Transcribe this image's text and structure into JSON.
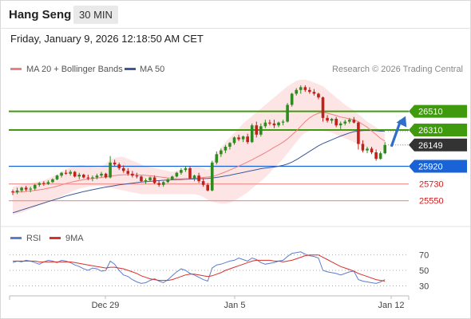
{
  "header": {
    "instrument": "Hang Seng",
    "timeframe": "30 MIN"
  },
  "datetime": "Friday, January 9, 2026 12:18:50 AM CET",
  "legend": {
    "bollinger_label": "MA 20 + Bollinger Bands",
    "ma50_label": "MA 50",
    "copyright": "Research © 2026 Trading Central",
    "rsi_label": "RSI",
    "rsi_ma_label": "9MA"
  },
  "colors": {
    "bullish": "#2e8b1f",
    "bearish": "#c0211b",
    "band_fill": "#fde0e0",
    "ma20": "#f08080",
    "ma50": "#3a5a98",
    "resistance": "#3f9a0e",
    "pivot": "#1a63d6",
    "support": "#f08a8a",
    "current": "#333333",
    "rsi": "#5a7ecf",
    "rsi_ma": "#d8302a"
  },
  "chart_data": [
    {
      "type": "candlestick",
      "title": "",
      "x_ticks": [
        "Dec 29",
        "Jan 5",
        "Jan 12"
      ],
      "ylim": [
        25350,
        26850
      ],
      "levels": {
        "resistance": [
          26510,
          26310
        ],
        "current": 26149,
        "pivot": 25920,
        "support": [
          25730,
          25550
        ]
      },
      "candles": [
        [
          25650,
          25670,
          25610,
          25640
        ],
        [
          25640,
          25690,
          25620,
          25660
        ],
        [
          25660,
          25700,
          25640,
          25690
        ],
        [
          25690,
          25710,
          25650,
          25670
        ],
        [
          25670,
          25700,
          25640,
          25680
        ],
        [
          25680,
          25730,
          25660,
          25720
        ],
        [
          25720,
          25750,
          25700,
          25740
        ],
        [
          25740,
          25760,
          25710,
          25730
        ],
        [
          25730,
          25770,
          25720,
          25750
        ],
        [
          25750,
          25790,
          25740,
          25780
        ],
        [
          25780,
          25830,
          25770,
          25820
        ],
        [
          25820,
          25860,
          25800,
          25850
        ],
        [
          25850,
          25880,
          25830,
          25840
        ],
        [
          25840,
          25880,
          25820,
          25860
        ],
        [
          25860,
          25870,
          25800,
          25810
        ],
        [
          25810,
          25850,
          25780,
          25830
        ],
        [
          25830,
          25840,
          25790,
          25800
        ],
        [
          25800,
          25830,
          25770,
          25790
        ],
        [
          25790,
          25820,
          25760,
          25800
        ],
        [
          25800,
          25840,
          25780,
          25820
        ],
        [
          25820,
          25860,
          25800,
          25840
        ],
        [
          25840,
          25850,
          25790,
          25800
        ],
        [
          25800,
          26030,
          25790,
          25960
        ],
        [
          25960,
          25990,
          25920,
          25940
        ],
        [
          25940,
          25960,
          25880,
          25900
        ],
        [
          25900,
          25930,
          25850,
          25870
        ],
        [
          25870,
          25900,
          25820,
          25840
        ],
        [
          25840,
          25870,
          25800,
          25820
        ],
        [
          25820,
          25850,
          25790,
          25810
        ],
        [
          25810,
          25820,
          25750,
          25760
        ],
        [
          25760,
          25790,
          25730,
          25770
        ],
        [
          25770,
          25810,
          25760,
          25800
        ],
        [
          25800,
          25820,
          25730,
          25740
        ],
        [
          25740,
          25770,
          25700,
          25720
        ],
        [
          25720,
          25760,
          25700,
          25750
        ],
        [
          25750,
          25790,
          25740,
          25780
        ],
        [
          25780,
          25820,
          25770,
          25810
        ],
        [
          25810,
          25860,
          25800,
          25850
        ],
        [
          25850,
          25900,
          25830,
          25880
        ],
        [
          25880,
          25920,
          25860,
          25900
        ],
        [
          25900,
          25920,
          25780,
          25790
        ],
        [
          25790,
          25830,
          25760,
          25820
        ],
        [
          25820,
          25850,
          25740,
          25760
        ],
        [
          25760,
          25790,
          25700,
          25720
        ],
        [
          25720,
          25740,
          25650,
          25660
        ],
        [
          25660,
          25980,
          25650,
          25960
        ],
        [
          25960,
          26080,
          25940,
          26050
        ],
        [
          26050,
          26110,
          26020,
          26090
        ],
        [
          26090,
          26150,
          26060,
          26130
        ],
        [
          26130,
          26180,
          26100,
          26170
        ],
        [
          26170,
          26240,
          26150,
          26230
        ],
        [
          26230,
          26260,
          26190,
          26210
        ],
        [
          26210,
          26250,
          26180,
          26240
        ],
        [
          26240,
          26270,
          26160,
          26180
        ],
        [
          26180,
          26380,
          26170,
          26360
        ],
        [
          26360,
          26400,
          26230,
          26260
        ],
        [
          26260,
          26380,
          26240,
          26350
        ],
        [
          26350,
          26420,
          26330,
          26390
        ],
        [
          26390,
          26420,
          26360,
          26380
        ],
        [
          26380,
          26420,
          26330,
          26360
        ],
        [
          26360,
          26400,
          26340,
          26390
        ],
        [
          26390,
          26420,
          26360,
          26400
        ],
        [
          26400,
          26600,
          26390,
          26580
        ],
        [
          26580,
          26710,
          26560,
          26700
        ],
        [
          26700,
          26760,
          26680,
          26740
        ],
        [
          26740,
          26790,
          26700,
          26770
        ],
        [
          26770,
          26790,
          26720,
          26740
        ],
        [
          26740,
          26770,
          26700,
          26720
        ],
        [
          26720,
          26750,
          26680,
          26700
        ],
        [
          26700,
          26710,
          26640,
          26660
        ],
        [
          26660,
          26670,
          26400,
          26440
        ],
        [
          26440,
          26470,
          26390,
          26410
        ],
        [
          26410,
          26440,
          26380,
          26430
        ],
        [
          26430,
          26450,
          26340,
          26360
        ],
        [
          26360,
          26400,
          26320,
          26380
        ],
        [
          26380,
          26420,
          26360,
          26400
        ],
        [
          26400,
          26440,
          26380,
          26420
        ],
        [
          26420,
          26450,
          26380,
          26390
        ],
        [
          26390,
          26400,
          26100,
          26160
        ],
        [
          26160,
          26200,
          26070,
          26090
        ],
        [
          26090,
          26130,
          26060,
          26110
        ],
        [
          26110,
          26130,
          26050,
          26070
        ],
        [
          26070,
          26100,
          25980,
          26000
        ],
        [
          26000,
          26080,
          25990,
          26060
        ],
        [
          26060,
          26180,
          26050,
          26149
        ]
      ],
      "ma20": [
        25640,
        25642,
        25646,
        25650,
        25654,
        25660,
        25667,
        25675,
        25684,
        25694,
        25706,
        25720,
        25734,
        25747,
        25758,
        25768,
        25776,
        25783,
        25789,
        25794,
        25799,
        25808,
        25815,
        25821,
        25826,
        25829,
        25830,
        25830,
        25828,
        25826,
        25822,
        25818,
        25813,
        25807,
        25801,
        25795,
        25790,
        25786,
        25785,
        25786,
        25788,
        25792,
        25796,
        25800,
        25804,
        25810,
        25824,
        25842,
        25860,
        25880,
        25900,
        25922,
        25944,
        25966,
        25990,
        26016,
        26040,
        26066,
        26094,
        26124,
        26150,
        26180,
        26214,
        26256,
        26300,
        26350,
        26400,
        26440,
        26470,
        26490,
        26500,
        26490,
        26478,
        26465,
        26450,
        26440,
        26430,
        26420,
        26400,
        26370,
        26340,
        26300,
        26260,
        26220,
        26190
      ],
      "band_upper": [
        25700,
        25710,
        25720,
        25730,
        25740,
        25750,
        25760,
        25770,
        25790,
        25810,
        25830,
        25860,
        25890,
        25910,
        25920,
        25930,
        25930,
        25920,
        25915,
        25910,
        25910,
        25950,
        25990,
        26010,
        26020,
        26020,
        26000,
        25980,
        25960,
        25940,
        25920,
        25910,
        25900,
        25890,
        25880,
        25870,
        25860,
        25870,
        25880,
        25890,
        25900,
        25910,
        25910,
        25900,
        25880,
        25950,
        26050,
        26120,
        26180,
        26230,
        26280,
        26330,
        26380,
        26420,
        26460,
        26500,
        26540,
        26580,
        26620,
        26660,
        26700,
        26740,
        26780,
        26810,
        26840,
        26850,
        26850,
        26840,
        26820,
        26800,
        26780,
        26740,
        26700,
        26660,
        26620,
        26580,
        26550,
        26520,
        26480,
        26440,
        26400,
        26370,
        26340,
        26300,
        26270
      ],
      "band_lower": [
        25400,
        25410,
        25420,
        25440,
        25460,
        25480,
        25500,
        25520,
        25540,
        25560,
        25580,
        25600,
        25620,
        25640,
        25660,
        25680,
        25690,
        25700,
        25705,
        25710,
        25710,
        25700,
        25690,
        25680,
        25670,
        25660,
        25650,
        25640,
        25630,
        25620,
        25620,
        25620,
        25620,
        25620,
        25620,
        25620,
        25620,
        25620,
        25620,
        25620,
        25620,
        25620,
        25610,
        25590,
        25560,
        25540,
        25530,
        25520,
        25520,
        25530,
        25550,
        25580,
        25610,
        25640,
        25680,
        25720,
        25760,
        25800,
        25850,
        25900,
        25950,
        26000,
        26060,
        26120,
        26180,
        26240,
        26280,
        26300,
        26310,
        26310,
        26300,
        26290,
        26280,
        26260,
        26240,
        26220,
        26200,
        26180,
        26160,
        26140,
        26120,
        26100,
        26090,
        26090,
        26100
      ],
      "ma50": [
        25420,
        25435,
        25450,
        25465,
        25480,
        25495,
        25510,
        25525,
        25540,
        25555,
        25570,
        25585,
        25600,
        25612,
        25624,
        25636,
        25648,
        25658,
        25668,
        25678,
        25688,
        25696,
        25704,
        25712,
        25720,
        25726,
        25732,
        25738,
        25744,
        25750,
        25754,
        25758,
        25762,
        25766,
        25770,
        25772,
        25774,
        25776,
        25778,
        25780,
        25782,
        25784,
        25786,
        25788,
        25790,
        25795,
        25800,
        25808,
        25816,
        25824,
        25834,
        25844,
        25854,
        25864,
        25874,
        25884,
        25894,
        25900,
        25906,
        25912,
        25920,
        25930,
        25945,
        25965,
        25990,
        26020,
        26050,
        26080,
        26110,
        26140,
        26165,
        26185,
        26205,
        26225,
        26245,
        26262,
        26278,
        26292,
        26300,
        26304,
        26306,
        26305,
        26302,
        26298,
        26294
      ],
      "projection": {
        "from": 26149,
        "to": 26510
      }
    },
    {
      "type": "line",
      "title": "",
      "series_names": [
        "RSI",
        "9MA"
      ],
      "y_ticks": [
        70,
        50,
        30
      ],
      "ylim": [
        20,
        80
      ],
      "rsi": [
        60,
        62,
        61,
        63,
        62,
        60,
        58,
        61,
        63,
        62,
        60,
        63,
        62,
        60,
        57,
        55,
        52,
        50,
        53,
        52,
        49,
        50,
        62,
        58,
        50,
        44,
        42,
        38,
        35,
        33,
        34,
        37,
        39,
        36,
        34,
        38,
        43,
        48,
        52,
        50,
        46,
        44,
        41,
        38,
        36,
        53,
        57,
        58,
        60,
        62,
        63,
        66,
        64,
        62,
        66,
        64,
        60,
        58,
        59,
        60,
        62,
        63,
        68,
        72,
        73,
        74,
        71,
        69,
        68,
        66,
        50,
        48,
        47,
        46,
        44,
        46,
        48,
        49,
        38,
        36,
        35,
        34,
        33,
        35,
        38
      ],
      "rsi_ma": [
        62,
        62,
        62,
        62,
        62,
        62,
        61,
        61,
        61,
        61,
        61,
        61,
        61,
        61,
        60,
        59,
        58,
        57,
        56,
        55,
        54,
        53,
        54,
        54,
        53,
        52,
        50,
        48,
        46,
        43,
        41,
        39,
        38,
        37,
        37,
        37,
        38,
        40,
        42,
        44,
        45,
        45,
        44,
        43,
        42,
        43,
        45,
        47,
        50,
        52,
        54,
        56,
        58,
        60,
        62,
        63,
        63,
        63,
        63,
        62,
        62,
        61,
        62,
        63,
        65,
        67,
        69,
        70,
        70,
        70,
        67,
        64,
        61,
        58,
        55,
        53,
        51,
        49,
        46,
        44,
        42,
        40,
        38,
        37,
        36
      ]
    }
  ]
}
